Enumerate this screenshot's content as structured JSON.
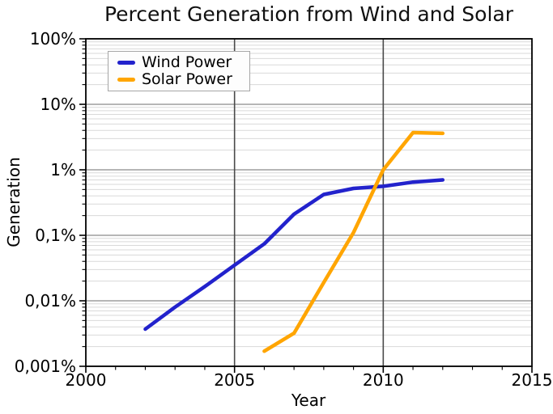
{
  "title": "Percent Generation from Wind and Solar",
  "legend": {
    "items": [
      {
        "label": "Wind Power",
        "color": "#2222cc"
      },
      {
        "label": "Solar Power",
        "color": "#ffa500"
      }
    ]
  },
  "axes": {
    "x": {
      "label": "Year",
      "min": 2000,
      "max": 2015,
      "major_ticks": [
        {
          "value": 2000,
          "label": "2000"
        },
        {
          "value": 2005,
          "label": "2005"
        },
        {
          "value": 2010,
          "label": "2010"
        },
        {
          "value": 2015,
          "label": "2015"
        }
      ],
      "minor_tick_step": 1,
      "gridline_years": [
        2005,
        2010
      ]
    },
    "y": {
      "label": "Generation",
      "scale": "log",
      "major_ticks": [
        {
          "value": 100,
          "label": "100%"
        },
        {
          "value": 10,
          "label": "10%"
        },
        {
          "value": 1,
          "label": "1%"
        },
        {
          "value": 0.1,
          "label": "0,1%"
        },
        {
          "value": 0.01,
          "label": "0,01%"
        },
        {
          "value": 0.001,
          "label": "0,001%"
        }
      ]
    }
  },
  "chart_data": {
    "type": "line",
    "title": "Percent Generation from Wind and Solar",
    "xlabel": "Year",
    "ylabel": "Generation",
    "x_range": [
      2000,
      2015
    ],
    "y_scale": "log",
    "y_range_percent": [
      0.001,
      100
    ],
    "grid": "major+minor horizontal, vertical at 2005 and 2010",
    "legend_position": "upper-left",
    "series": [
      {
        "name": "Wind Power",
        "color": "#2222cc",
        "points": [
          [
            2002,
            0.0037
          ],
          [
            2003,
            0.008
          ],
          [
            2004,
            0.0165
          ],
          [
            2005,
            0.035
          ],
          [
            2006,
            0.074
          ],
          [
            2007,
            0.21
          ],
          [
            2008,
            0.42
          ],
          [
            2009,
            0.52
          ],
          [
            2010,
            0.56
          ],
          [
            2011,
            0.65
          ],
          [
            2012,
            0.7
          ]
        ]
      },
      {
        "name": "Solar Power",
        "color": "#ffa500",
        "points": [
          [
            2006,
            0.0017
          ],
          [
            2007,
            0.0032
          ],
          [
            2008,
            0.019
          ],
          [
            2009,
            0.11
          ],
          [
            2010,
            1.0
          ],
          [
            2011,
            3.7
          ],
          [
            2012,
            3.6
          ]
        ]
      }
    ]
  },
  "colors": {
    "background": "#ffffff",
    "spine": "#000000",
    "gridline_major": "#8a8a8a",
    "gridline_minor": "#d9d9d9",
    "gridline_vertical": "#4a4a4a",
    "text": "#000000"
  }
}
